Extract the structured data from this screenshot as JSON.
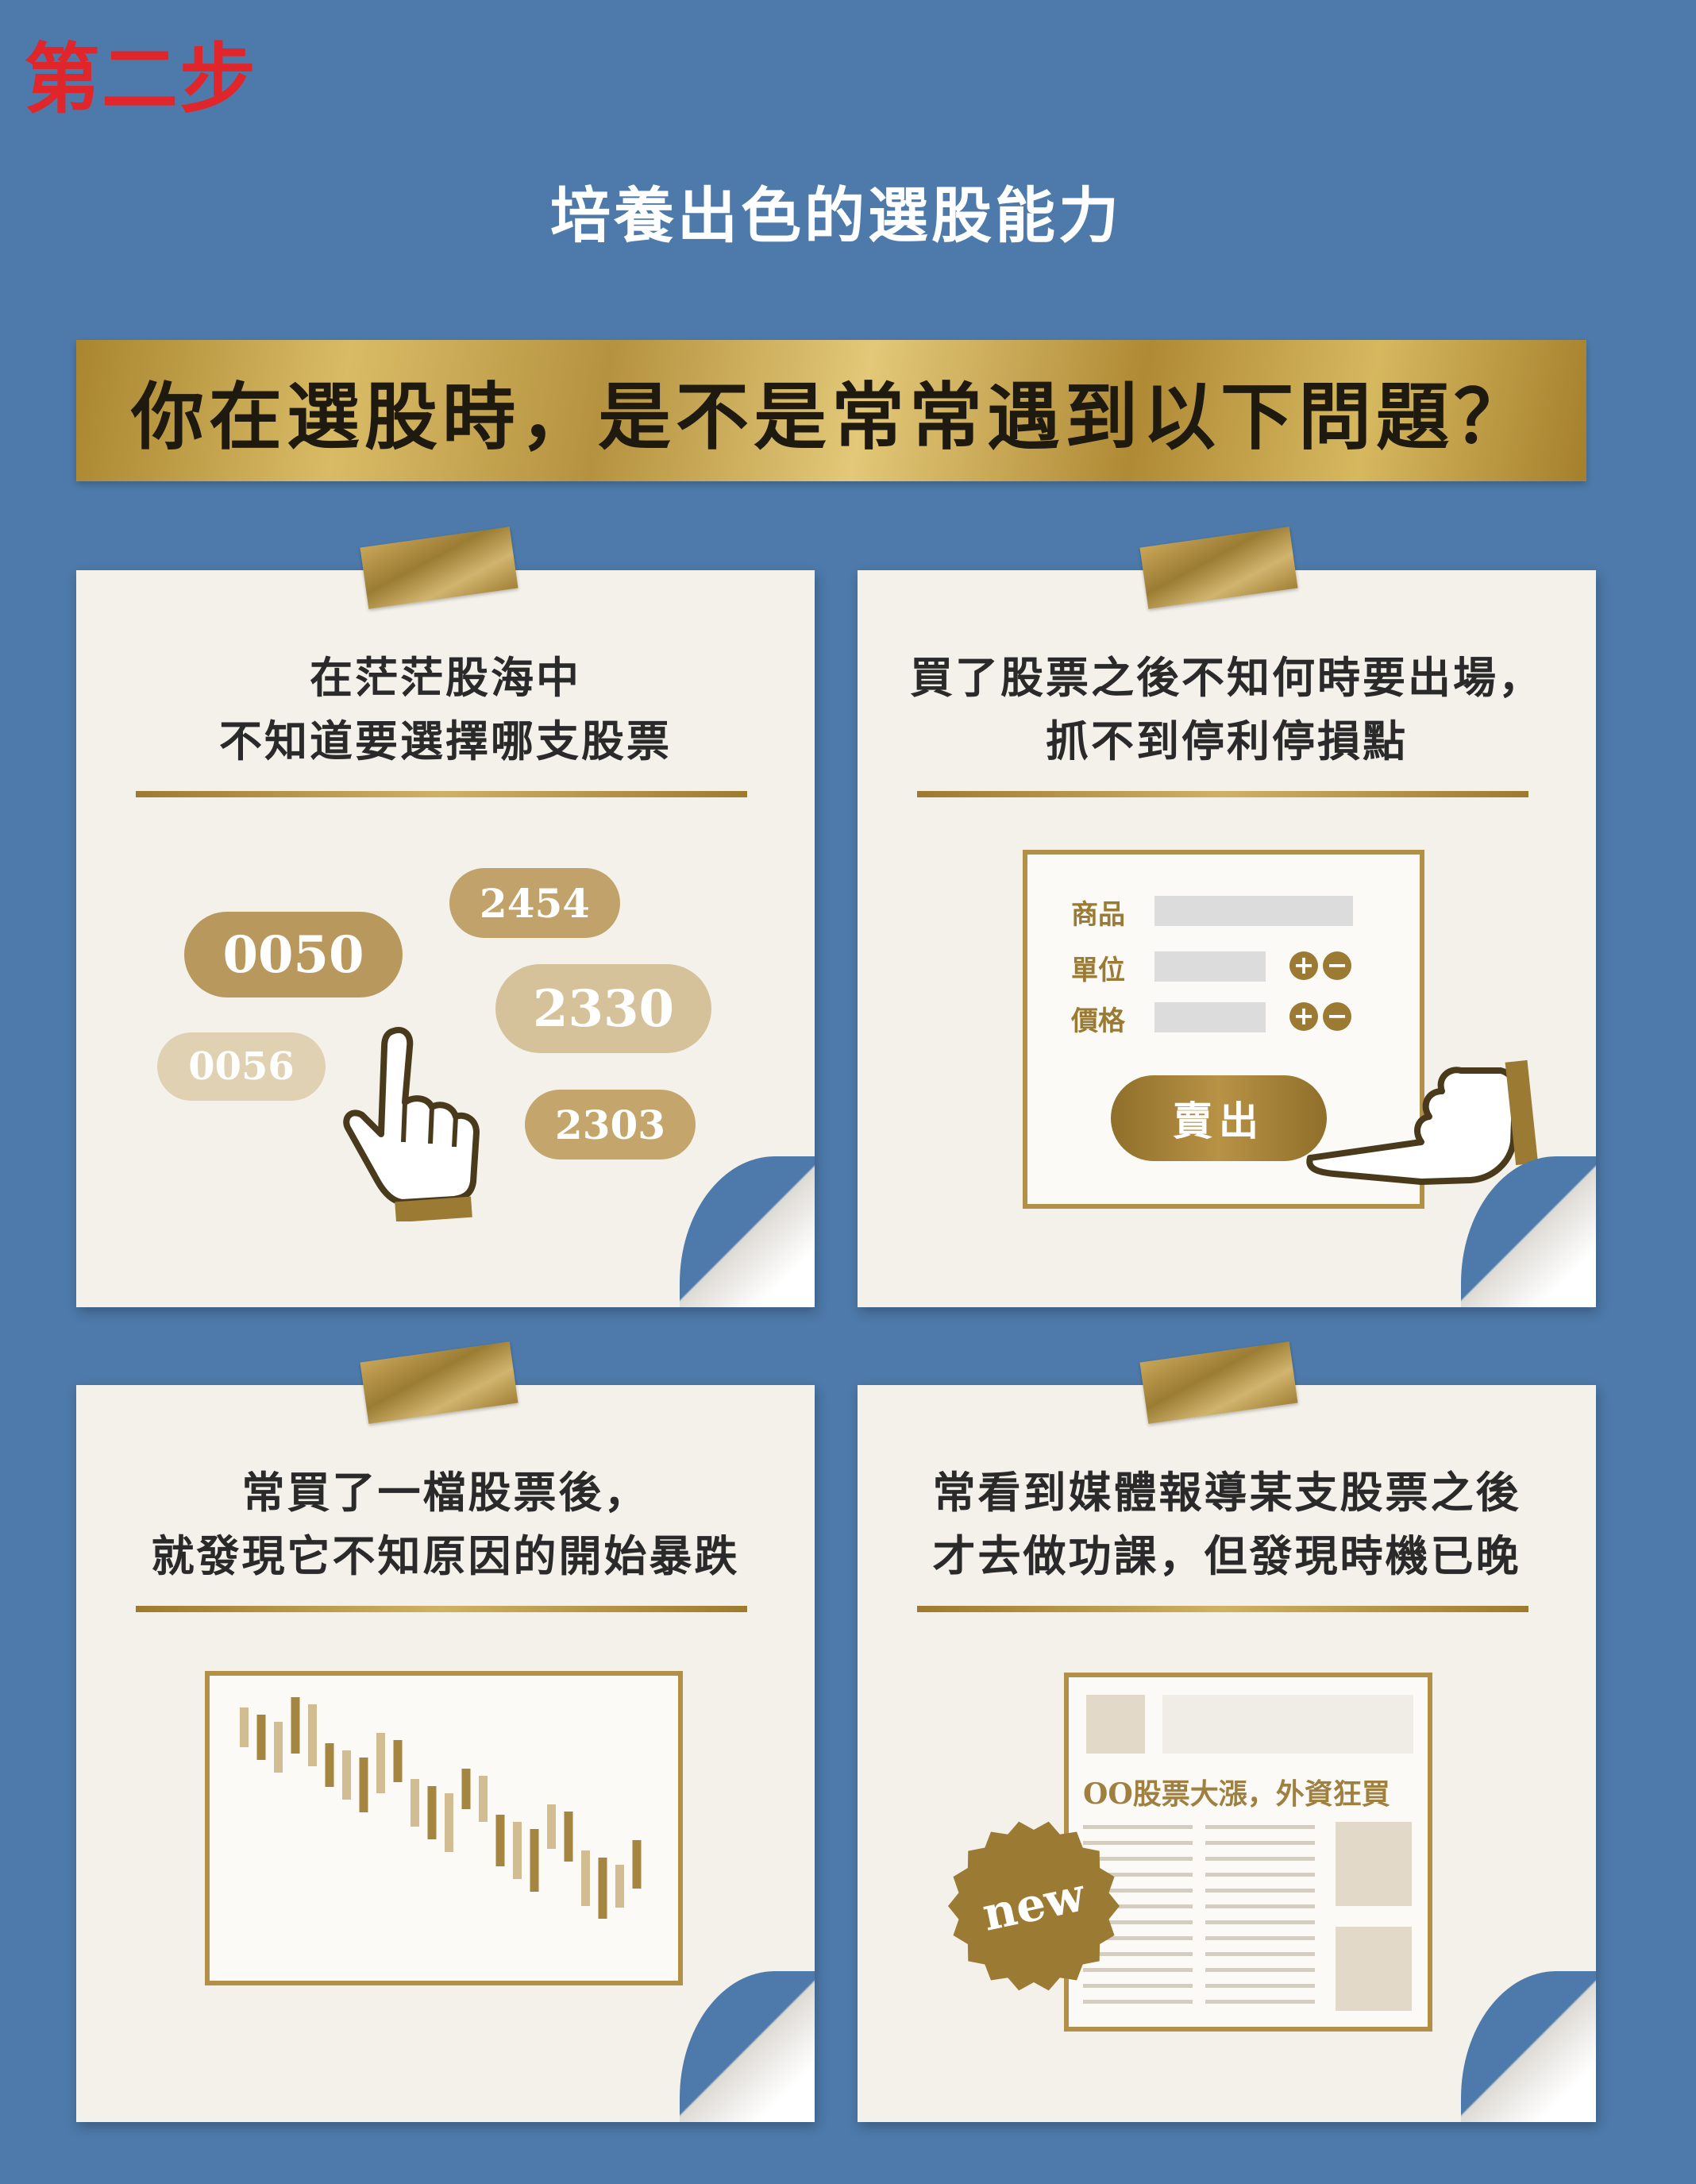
{
  "step_label": "第二步",
  "subtitle": "培養出色的選股能力",
  "banner": "你在選股時，是不是常常遇到以下問題？",
  "cards": [
    {
      "title_lines": [
        "在茫茫股海中",
        "不知道要選擇哪支股票"
      ],
      "tickers": [
        "2454",
        "0050",
        "2330",
        "0056",
        "2303"
      ]
    },
    {
      "title_lines": [
        "買了股票之後不知何時要出場，",
        "抓不到停利停損點"
      ],
      "form": {
        "labels": [
          "商品",
          "單位",
          "價格"
        ],
        "plus": "+",
        "minus": "−",
        "sell_button": "賣出"
      }
    },
    {
      "title_lines": [
        "常買了一檔股票後，",
        "就發現它不知原因的開始暴跌"
      ]
    },
    {
      "title_lines": [
        "常看到媒體報導某支股票之後",
        "才去做功課，但發現時機已晚"
      ],
      "news": {
        "headline": "OO股票大漲，外資狂買",
        "badge": "new"
      }
    }
  ],
  "colors": {
    "background": "#4d7aab",
    "gold": "#b29048",
    "card": "#f4f1eb",
    "step_label": "#e0262b"
  }
}
